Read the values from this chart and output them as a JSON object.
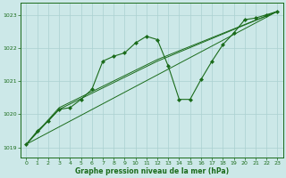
{
  "title": "Graphe pression niveau de la mer (hPa)",
  "background_color": "#cce8e8",
  "grid_color": "#aad0d0",
  "line_color": "#1a6b1a",
  "marker_color": "#1a6b1a",
  "xlim": [
    -0.5,
    23.5
  ],
  "ylim": [
    1018.7,
    1023.35
  ],
  "yticks": [
    1019,
    1020,
    1021,
    1022,
    1023
  ],
  "xticks": [
    0,
    1,
    2,
    3,
    4,
    5,
    6,
    7,
    8,
    9,
    10,
    11,
    12,
    13,
    14,
    15,
    16,
    17,
    18,
    19,
    20,
    21,
    22,
    23
  ],
  "series_main": {
    "x": [
      0,
      1,
      2,
      3,
      4,
      5,
      6,
      7,
      8,
      9,
      10,
      11,
      12,
      13,
      14,
      15,
      16,
      17,
      18,
      19,
      20,
      21,
      22,
      23
    ],
    "y": [
      1019.1,
      1019.5,
      1019.8,
      1020.15,
      1020.2,
      1020.45,
      1020.75,
      1021.6,
      1021.75,
      1021.85,
      1022.15,
      1022.35,
      1022.25,
      1021.45,
      1020.45,
      1020.45,
      1021.05,
      1021.6,
      1022.1,
      1022.45,
      1022.85,
      1022.9,
      1023.0,
      1023.1
    ]
  },
  "series_line1": {
    "x": [
      0,
      23
    ],
    "y": [
      1019.1,
      1023.1
    ]
  },
  "series_line2": {
    "x": [
      0,
      3,
      12,
      23
    ],
    "y": [
      1019.1,
      1020.15,
      1021.6,
      1023.1
    ]
  },
  "series_line3": {
    "x": [
      0,
      3,
      12,
      23
    ],
    "y": [
      1019.1,
      1020.2,
      1021.65,
      1023.1
    ]
  }
}
